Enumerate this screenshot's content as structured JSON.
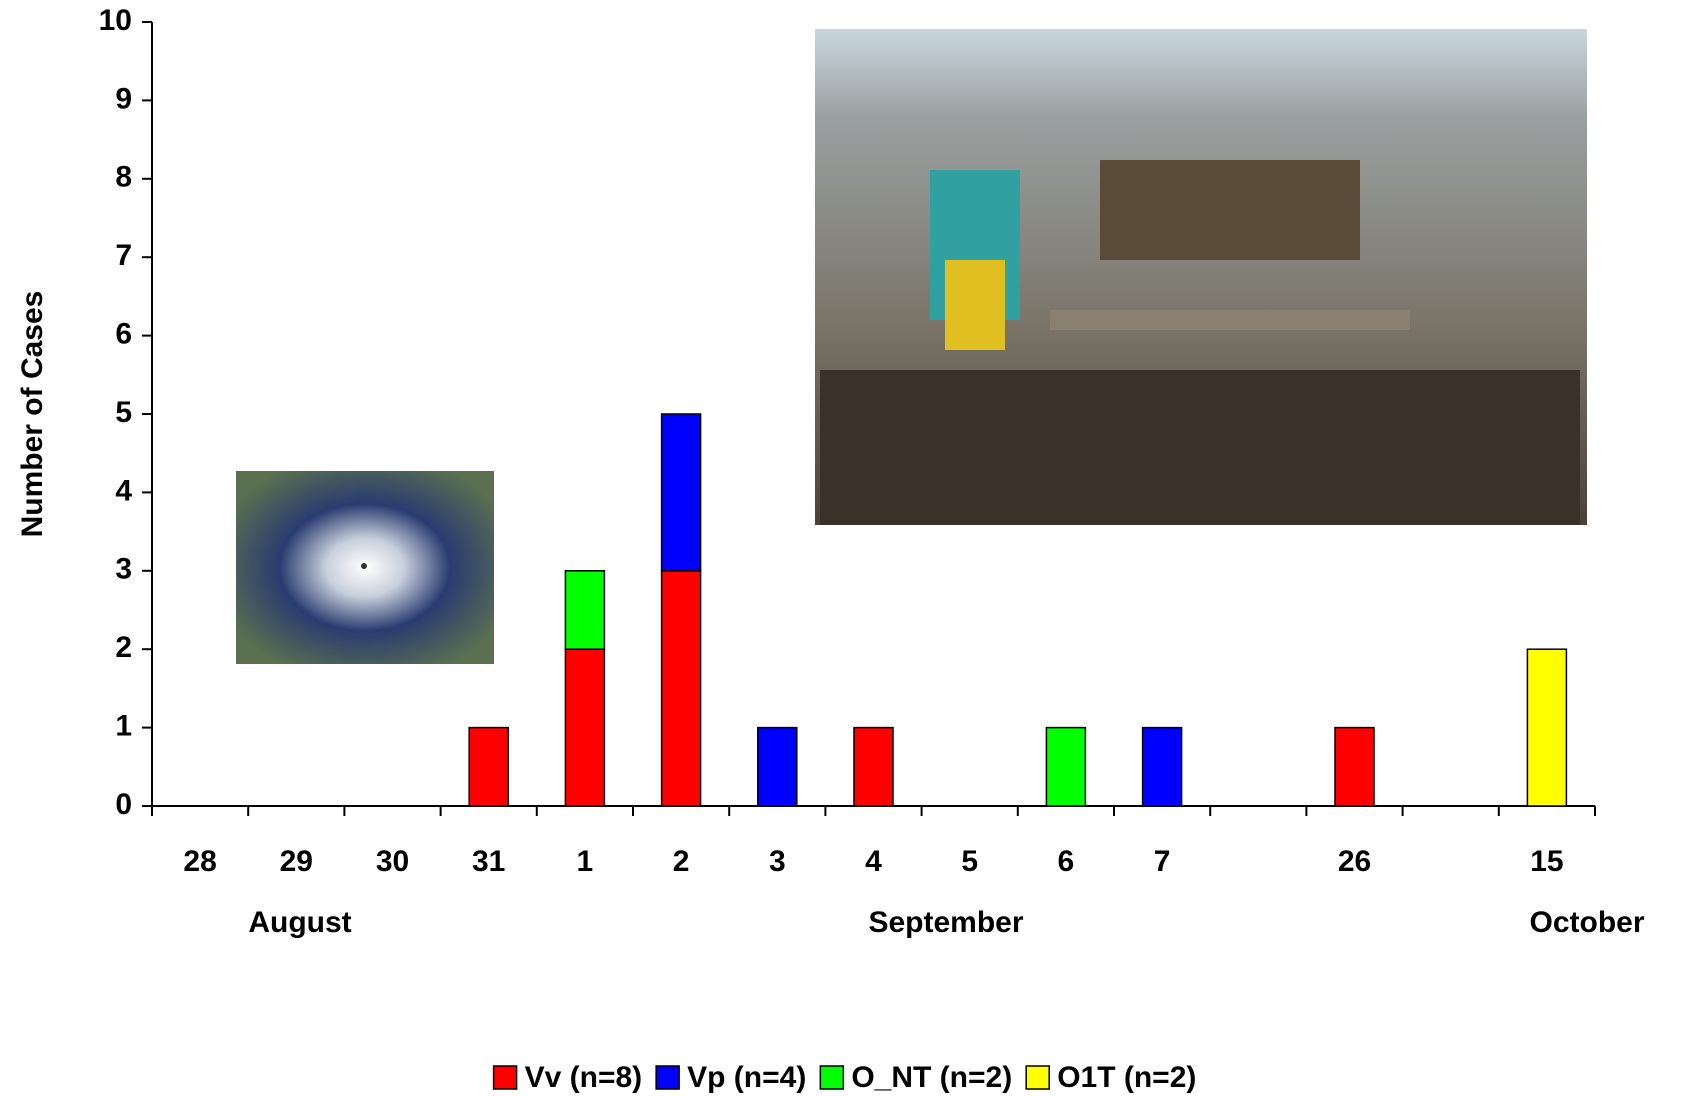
{
  "chart_data": {
    "type": "stacked_bar",
    "y_label": "Number of Cases",
    "categories": [
      "28",
      "29",
      "30",
      "31",
      "1",
      "2",
      "3",
      "4",
      "5",
      "6",
      "7",
      null,
      "26",
      null,
      "15"
    ],
    "months": [
      "August",
      "September",
      "October"
    ],
    "series": [
      {
        "name": "Vv (n=8)",
        "color": "#ff0000",
        "values": [
          0,
          0,
          0,
          1,
          2,
          3,
          0,
          1,
          0,
          0,
          0,
          0,
          1,
          0,
          0
        ]
      },
      {
        "name": "Vp (n=4)",
        "color": "#0000ff",
        "values": [
          0,
          0,
          0,
          0,
          0,
          2,
          1,
          0,
          0,
          0,
          1,
          0,
          0,
          0,
          0
        ]
      },
      {
        "name": "O_NT (n=2)",
        "color": "#00ff00",
        "values": [
          0,
          0,
          0,
          0,
          1,
          0,
          0,
          0,
          0,
          1,
          0,
          0,
          0,
          0,
          0
        ]
      },
      {
        "name": "O1T (n=2)",
        "color": "#ffff00",
        "values": [
          0,
          0,
          0,
          0,
          0,
          0,
          0,
          0,
          0,
          0,
          0,
          0,
          0,
          0,
          2
        ]
      }
    ],
    "ylim": [
      0,
      10
    ],
    "yticks": [
      0,
      1,
      2,
      3,
      4,
      5,
      6,
      7,
      8,
      9,
      10
    ]
  }
}
